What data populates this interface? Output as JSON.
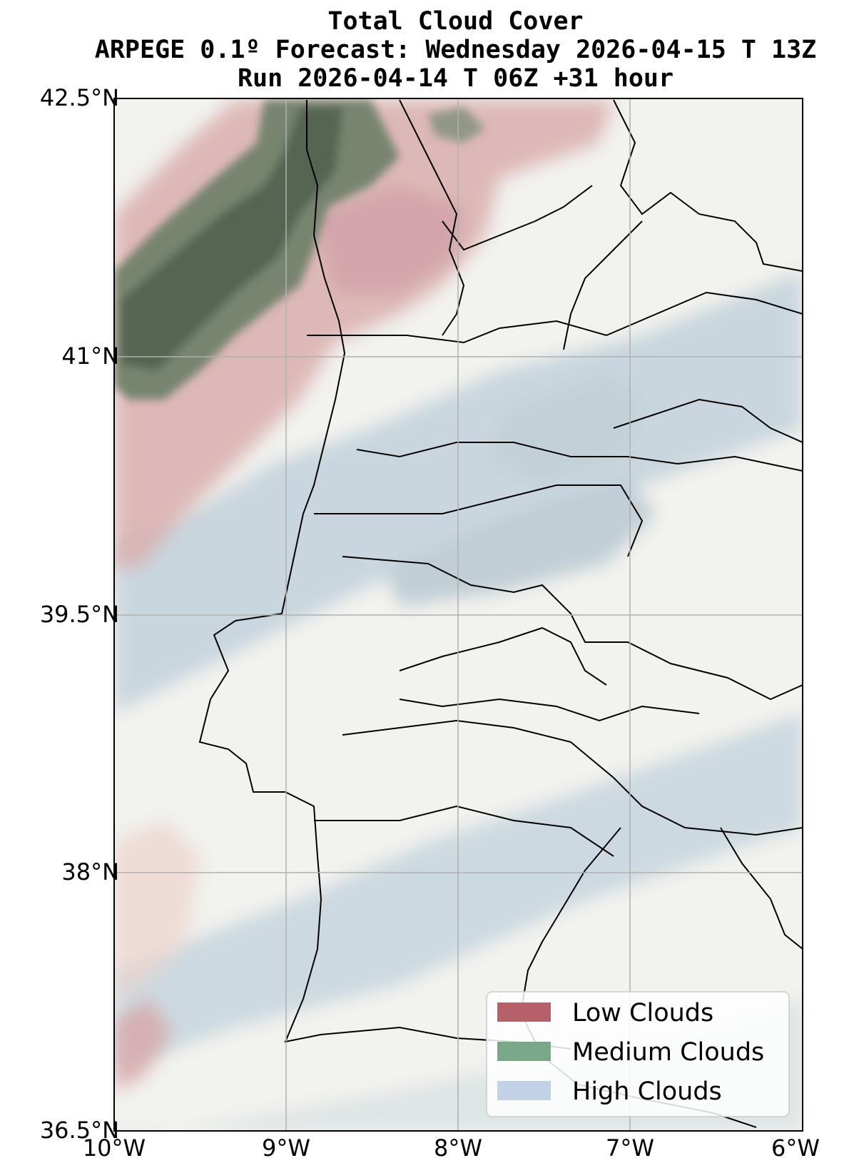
{
  "title": {
    "line1": "Total Cloud Cover",
    "line2": "ARPEGE 0.1º Forecast: Wednesday 2026-04-15 T 13Z",
    "line3": "Run 2026-04-14 T 06Z +31 hour"
  },
  "axes": {
    "lat_labels": [
      "42.5°N",
      "41°N",
      "39.5°N",
      "38°N",
      "36.5°N"
    ],
    "lon_labels": [
      "10°W",
      "9°W",
      "8°W",
      "7°W",
      "6°W"
    ]
  },
  "legend": {
    "items": [
      {
        "label": "Low Clouds",
        "color": "#b8606a"
      },
      {
        "label": "Medium Clouds",
        "color": "#7aa98a"
      },
      {
        "label": "High Clouds",
        "color": "#c2d2e6"
      }
    ]
  },
  "colors": {
    "clear_land": "#f2f2ee",
    "low_clouds": "#c98a8e",
    "medium_clouds": "#5d6e5a",
    "high_clouds": "#c8d6de",
    "gridline": "#b0b0b0",
    "border": "#000000"
  }
}
